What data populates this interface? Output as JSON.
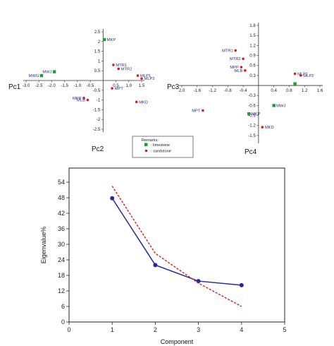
{
  "chart_data": [
    {
      "type": "scatter",
      "xlabel": "Pc1",
      "ylabel": "Pc2",
      "xlim": [
        -3.0,
        1.5
      ],
      "ylim": [
        -2.5,
        2.5
      ],
      "x_ticks": [
        "-3.0",
        "-2.5",
        "-2.0",
        "-1.5",
        "-1.0",
        "-0.5",
        "0.5",
        "1.0",
        "1.5"
      ],
      "y_ticks": [
        "2.5",
        "2",
        "1.5",
        "1",
        "0.5",
        "-0.5",
        "-1",
        "-1.5",
        "-2",
        "-2.5"
      ],
      "series": [
        {
          "name": "limestone",
          "color": "#1a9e3a",
          "points": [
            {
              "label": "MKP",
              "x": 0.05,
              "y": 2.1
            },
            {
              "label": "MWJ",
              "x": -1.9,
              "y": 0.45
            },
            {
              "label": "MWG",
              "x": -2.4,
              "y": 0.25
            }
          ]
        },
        {
          "name": "sandstone",
          "color": "#d42020",
          "points": [
            {
              "label": "MTR1",
              "x": 0.4,
              "y": 0.8
            },
            {
              "label": "MTR2",
              "x": 0.6,
              "y": 0.6
            },
            {
              "label": "MLP1",
              "x": 1.35,
              "y": 0.25
            },
            {
              "label": "MLP2",
              "x": 1.5,
              "y": 0.1
            },
            {
              "label": "MPT",
              "x": 0.35,
              "y": -0.4
            },
            {
              "label": "MPP",
              "x": -0.75,
              "y": -0.9
            },
            {
              "label": "MLB",
              "x": -0.6,
              "y": -1.0
            },
            {
              "label": "MKD",
              "x": 1.3,
              "y": -1.1
            }
          ]
        }
      ]
    },
    {
      "type": "scatter",
      "xlabel": "Pc3",
      "ylabel": "Pc4",
      "xlim": [
        -2.0,
        1.6
      ],
      "ylim": [
        -1.65,
        1.8
      ],
      "x_ticks": [
        "2.0",
        "-1.6",
        "-1.2",
        "-0.8",
        "-0.4",
        "0.4",
        "0.8",
        "1.2",
        "1.6"
      ],
      "y_ticks": [
        "1.8",
        "1.5",
        "1.2",
        "0.9",
        "0.6",
        "0.3",
        "-0.3",
        "-0.6",
        "-0.9",
        "-1.2",
        "-1.5"
      ],
      "series": [
        {
          "name": "limestone",
          "color": "#1a9e3a",
          "points": [
            {
              "label": "MKP",
              "x": -0.25,
              "y": -0.85
            },
            {
              "label": "MWJ",
              "x": 0.4,
              "y": -0.6
            },
            {
              "label": "",
              "x": 0.95,
              "y": 0.05
            }
          ]
        },
        {
          "name": "sandstone",
          "color": "#d42020",
          "points": [
            {
              "label": "MTR1",
              "x": -0.6,
              "y": 1.05
            },
            {
              "label": "MTR2",
              "x": -0.4,
              "y": 0.8
            },
            {
              "label": "MPP",
              "x": -0.45,
              "y": 0.55
            },
            {
              "label": "MLB",
              "x": -0.35,
              "y": 0.45
            },
            {
              "label": "MLP1",
              "x": 0.95,
              "y": 0.35
            },
            {
              "label": "MLP2",
              "x": 1.1,
              "y": 0.3
            },
            {
              "label": "MPT",
              "x": -1.45,
              "y": -0.75
            },
            {
              "label": "MKD",
              "x": 0.1,
              "y": -1.25
            }
          ]
        }
      ]
    },
    {
      "type": "line",
      "xlabel": "Component",
      "ylabel": "Eigenvalue%",
      "xlim": [
        0,
        5
      ],
      "ylim": [
        0,
        54
      ],
      "x_ticks": [
        "0",
        "1",
        "2",
        "3",
        "4",
        "5"
      ],
      "y_ticks": [
        "0",
        "6",
        "12",
        "18",
        "24",
        "30",
        "36",
        "42",
        "48",
        "54"
      ],
      "series": [
        {
          "color": "#28289a",
          "x": [
            1,
            2,
            3,
            4
          ],
          "y": [
            47.8,
            22.0,
            15.8,
            14.2
          ]
        },
        {
          "color": "#e01818",
          "x": [
            1,
            2,
            3,
            4
          ],
          "y": [
            52.5,
            26.5,
            15.0,
            6.0
          ]
        }
      ]
    }
  ],
  "legend": {
    "title": "Remarks:",
    "items": [
      {
        "label": ": limestone",
        "color": "#1a9e3a"
      },
      {
        "label": ": sandstone",
        "color": "#d42020"
      }
    ]
  }
}
